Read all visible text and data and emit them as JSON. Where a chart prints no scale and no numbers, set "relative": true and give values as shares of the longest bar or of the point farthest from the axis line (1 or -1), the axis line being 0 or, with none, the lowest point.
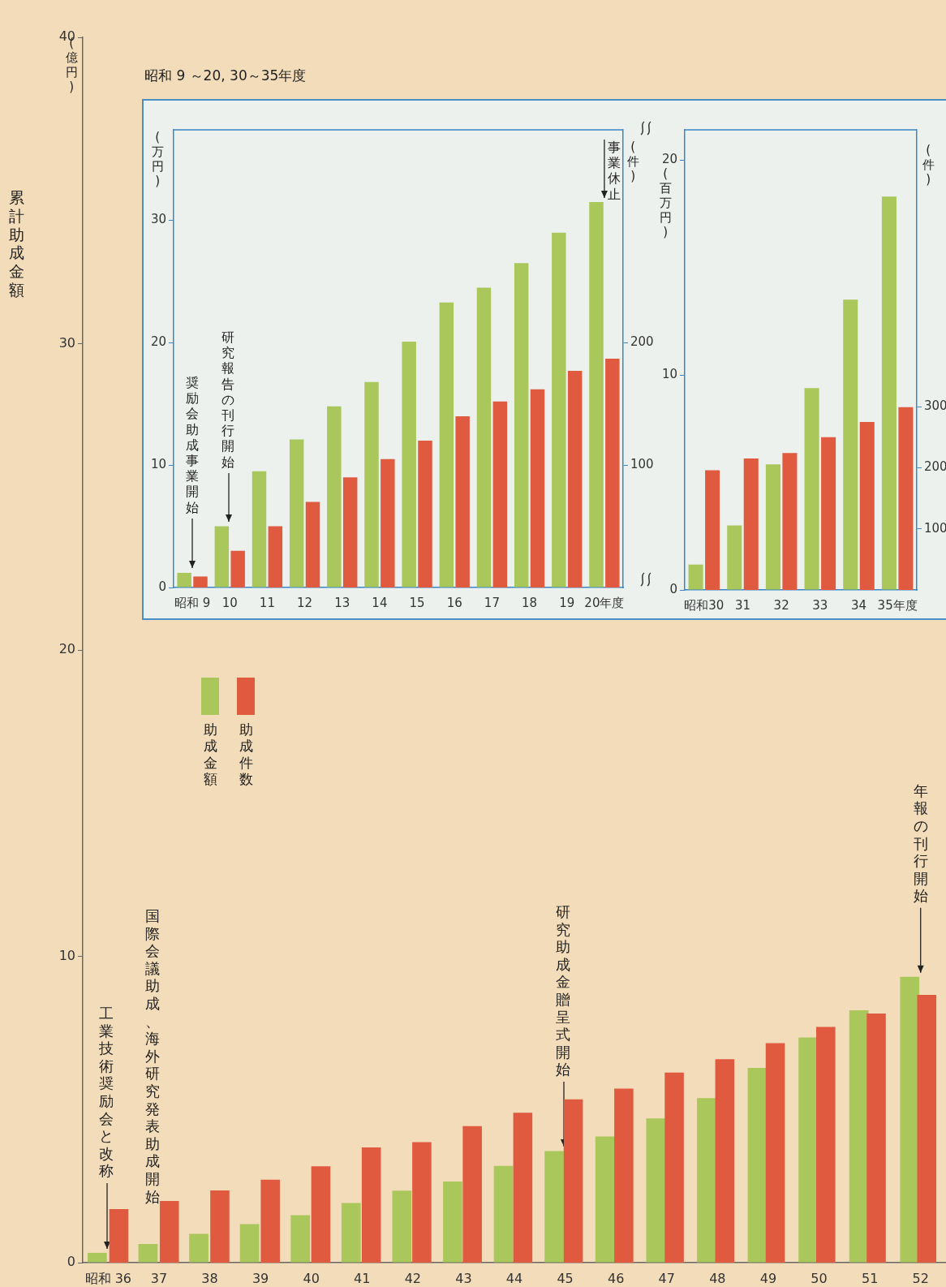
{
  "chart_data": [
    {
      "type": "bar",
      "title": "昭和 9 ～20, 30～35年度",
      "ylabel": "(万円)",
      "y2label": "(件)",
      "categories": [
        "昭和 9",
        "10",
        "11",
        "12",
        "13",
        "14",
        "15",
        "16",
        "17",
        "18",
        "19",
        "20年度"
      ],
      "series": [
        {
          "color": "#a9c75a",
          "values": [
            1.2,
            5.0,
            9.5,
            12.1,
            14.8,
            16.8,
            20.1,
            23.3,
            24.5,
            26.5,
            29.0,
            31.5
          ]
        },
        {
          "color": "#e05a40",
          "axis": "y2",
          "values": [
            9,
            30,
            50,
            70,
            90,
            105,
            120,
            140,
            152,
            162,
            177,
            187
          ]
        }
      ],
      "ylim": [
        0,
        37.4
      ],
      "yticks": [
        0,
        10,
        20,
        30
      ],
      "y2lim": [
        0,
        374
      ],
      "y2ticks": [
        100,
        200
      ],
      "annotations": [
        "奨励会助成事業開始",
        "研究報告の刊行開始",
        {
          "text": "事業休止",
          "x": "20年度",
          "y": 31.5
        }
      ]
    },
    {
      "type": "bar",
      "ylabel": "(百万円)",
      "y2label": "(件)",
      "categories": [
        "昭和30",
        "31",
        "32",
        "33",
        "34",
        "35年度"
      ],
      "series": [
        {
          "color": "#a9c75a",
          "values": [
            1.18,
            3.0,
            5.84,
            9.39,
            13.5,
            18.3
          ]
        },
        {
          "color": "#e05a40",
          "axis": "y2",
          "values": [
            196,
            215,
            224,
            250,
            275,
            299
          ]
        }
      ],
      "ylim": [
        0,
        21.4
      ],
      "yticks": [
        0,
        10,
        20
      ],
      "y2lim": [
        0,
        753
      ],
      "y2ticks": [
        100,
        200,
        300
      ]
    },
    {
      "type": "bar",
      "ylabel": "累計助成金額",
      "categories": [
        "昭和 36",
        "37",
        "38",
        "39",
        "40",
        "41",
        "42",
        "43",
        "44",
        "45",
        "46",
        "47",
        "48",
        "49",
        "50",
        "51",
        "52"
      ],
      "series": [
        {
          "name": "助成金額",
          "color": "#a9c75a",
          "values": [
            0.32,
            0.61,
            0.94,
            1.26,
            1.55,
            1.95,
            2.35,
            2.65,
            3.16,
            3.64,
            4.12,
            4.71,
            5.37,
            6.36,
            7.35,
            8.24,
            9.33
          ]
        }
      ],
      "ylim": [
        0,
        40
      ],
      "yticks": [
        0,
        10,
        20,
        30,
        40
      ],
      "legend": "left",
      "annotations": [
        "(億円)",
        "国際会議助成、海外研究発表助成開始",
        "工業技術奨励会と改称",
        "研究助成金贈呈式開始",
        {
          "text": "年報の刊行開始",
          "x": "52",
          "y": 9.33
        }
      ]
    },
    {
      "type": "bar",
      "relative": true,
      "tick_labels": false,
      "legend": "left",
      "categories": [
        "昭和 36",
        "37",
        "38",
        "39",
        "40",
        "41",
        "42",
        "43",
        "44",
        "45",
        "46",
        "47",
        "48",
        "49",
        "50",
        "51",
        "52"
      ],
      "series": [
        {
          "name": "助成件数",
          "color": "#e05a40",
          "values": [
            0.2,
            0.23,
            0.27,
            0.31,
            0.36,
            0.43,
            0.45,
            0.51,
            0.56,
            0.61,
            0.65,
            0.71,
            0.76,
            0.82,
            0.88,
            0.93,
            1
          ]
        }
      ]
    }
  ]
}
